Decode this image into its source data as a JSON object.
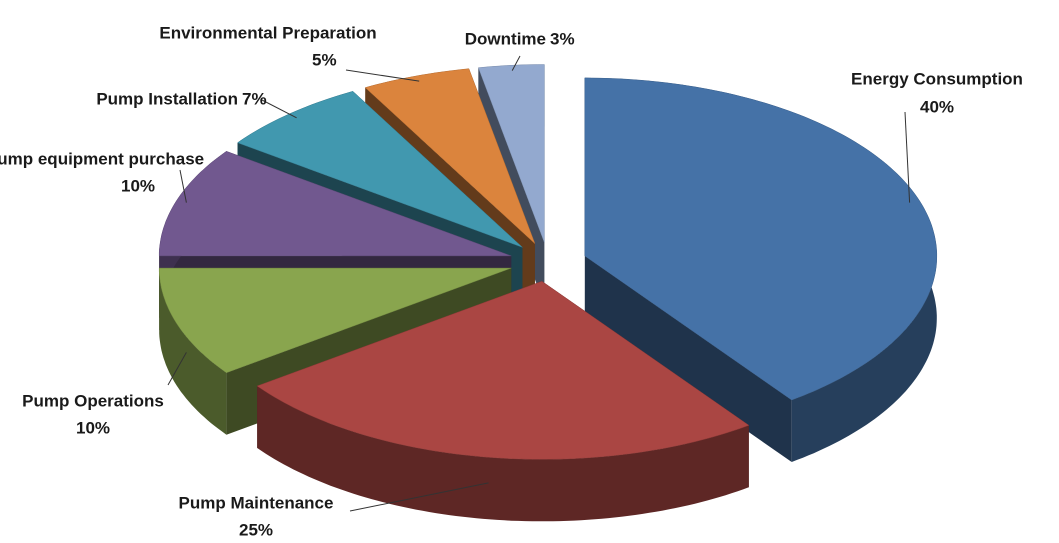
{
  "chart_data": {
    "type": "pie",
    "categories": [
      "Energy Consumption",
      "Pump Maintenance",
      "Pump Operations",
      "Pump equipment purchase",
      "Pump Installation",
      "Environmental Preparation",
      "Downtime"
    ],
    "values": [
      40,
      25,
      10,
      10,
      7,
      5,
      3
    ],
    "value_labels": [
      "40%",
      "25%",
      "10%",
      "10%",
      "7%",
      "5%",
      "3%"
    ],
    "colors": [
      "#4572a7",
      "#aa4643",
      "#89a54e",
      "#71588f",
      "#4198af",
      "#db843d",
      "#93a9cf"
    ]
  }
}
